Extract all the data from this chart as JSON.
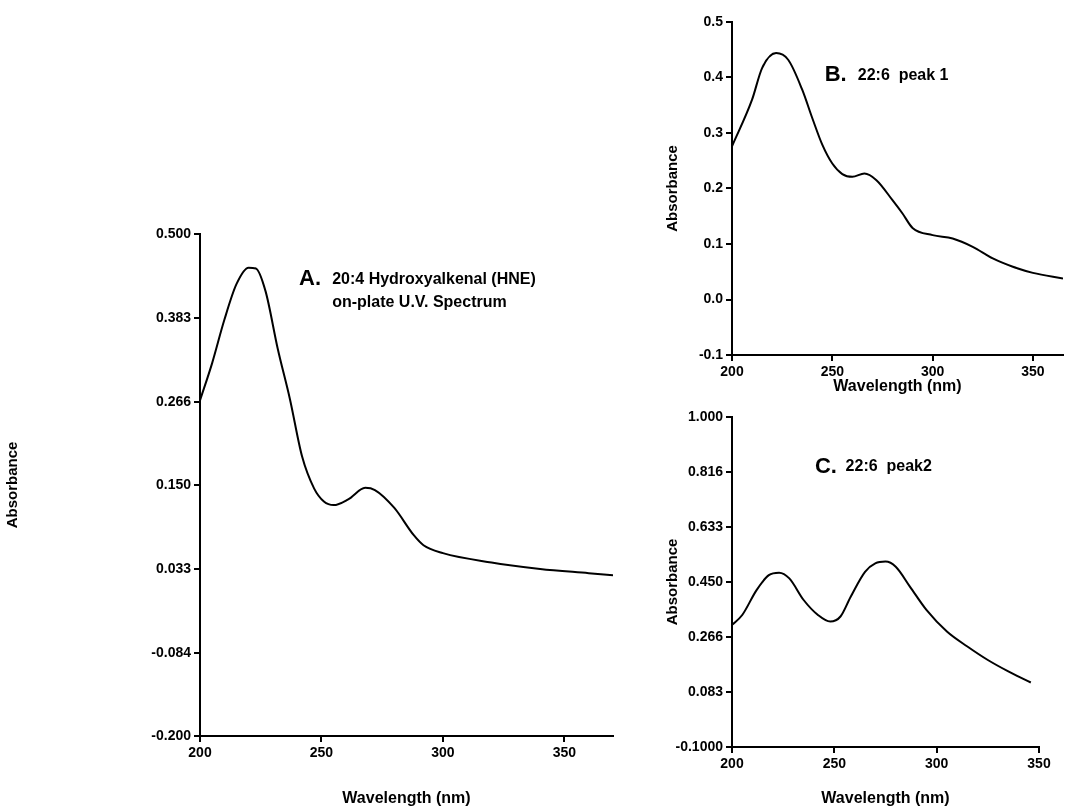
{
  "chart_data": [
    {
      "type": "line",
      "annotations": [
        "A.",
        "20:4 Hydroxyalkenal (HNE)",
        "on-plate U.V. Spectrum"
      ],
      "xlabel": "Wavelength (nm)",
      "ylabel": "Absorbance",
      "color": "#000000",
      "x": [
        200,
        205,
        210,
        215,
        220,
        223,
        227,
        232,
        237,
        242,
        247,
        251,
        255,
        261,
        268,
        272,
        280,
        288,
        292,
        300,
        320,
        340,
        360,
        370
      ],
      "values": [
        0.268,
        0.32,
        0.38,
        0.43,
        0.453,
        0.452,
        0.42,
        0.34,
        0.27,
        0.19,
        0.145,
        0.127,
        0.122,
        0.13,
        0.146,
        0.143,
        0.118,
        0.08,
        0.066,
        0.055,
        0.042,
        0.033,
        0.027,
        0.024
      ],
      "xlim": [
        200,
        370
      ],
      "xticks": [
        200,
        250,
        300,
        350
      ],
      "ylim": [
        -0.2,
        0.5
      ],
      "yticks": [
        {
          "value": -0.2,
          "label": "-0.200"
        },
        -0.084,
        0.033,
        {
          "value": 0.15,
          "label": "0.150"
        },
        0.266,
        0.383,
        {
          "value": 0.5,
          "label": "0.500"
        }
      ]
    },
    {
      "type": "line",
      "annotations": [
        "B.",
        "22:6  peak 1"
      ],
      "xlabel": "Wavelength (nm)",
      "ylabel": "Absorbance",
      "color": "#000000",
      "x": [
        200,
        210,
        215,
        222,
        228,
        235,
        240,
        245,
        250,
        255,
        260,
        266,
        272,
        280,
        285,
        290,
        300,
        310,
        320,
        330,
        340,
        350,
        365
      ],
      "values": [
        0.276,
        0.36,
        0.417,
        0.444,
        0.432,
        0.378,
        0.327,
        0.279,
        0.245,
        0.226,
        0.221,
        0.227,
        0.215,
        0.179,
        0.155,
        0.129,
        0.116,
        0.11,
        0.095,
        0.074,
        0.059,
        0.048,
        0.038
      ],
      "xlim": [
        200,
        365
      ],
      "xticks": [
        200,
        250,
        300,
        350
      ],
      "ylim": [
        -0.1,
        0.5
      ],
      "yticks": [
        -0.1,
        {
          "value": 0,
          "label": "0.0"
        },
        0.1,
        0.2,
        0.3,
        0.4,
        0.5
      ]
    },
    {
      "type": "line",
      "annotations": [
        "C.",
        "22:6  peak2"
      ],
      "xlabel": "Wavelength (nm)",
      "ylabel": "Absorbance",
      "color": "#000000",
      "x": [
        200,
        205,
        212,
        218,
        223,
        228,
        235,
        242,
        248,
        253,
        258,
        265,
        270,
        275,
        280,
        287,
        295,
        305,
        315,
        325,
        335,
        346
      ],
      "values": [
        0.307,
        0.34,
        0.423,
        0.473,
        0.481,
        0.462,
        0.39,
        0.34,
        0.318,
        0.335,
        0.401,
        0.484,
        0.512,
        0.518,
        0.501,
        0.434,
        0.357,
        0.285,
        0.235,
        0.19,
        0.152,
        0.115
      ],
      "xlim": [
        200,
        350
      ],
      "xticks": [
        200,
        250,
        300,
        350
      ],
      "ylim": [
        -0.1,
        1
      ],
      "yticks": [
        {
          "value": -0.1,
          "label": "-0.1000"
        },
        0.083,
        0.266,
        {
          "value": 0.45,
          "label": "0.450"
        },
        0.633,
        0.816,
        {
          "value": 1,
          "label": "1.000"
        }
      ]
    }
  ]
}
